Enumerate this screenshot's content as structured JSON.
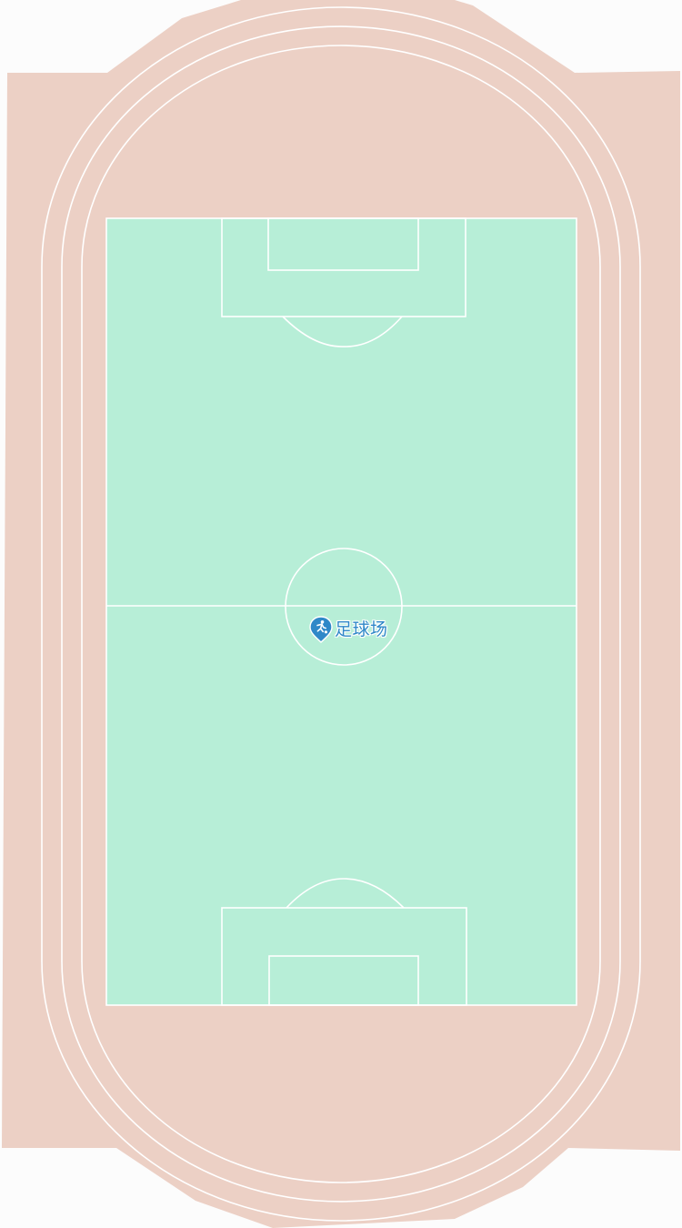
{
  "map": {
    "colors": {
      "background": "#fcfcfc",
      "track": "#ecd0c5",
      "field": "#b7eed7",
      "lines": "#ffffff",
      "poi_pin": "#2f88c8",
      "poi_text": "#2f88c8"
    }
  },
  "poi": {
    "label": "足球场",
    "icon": "soccer-player-pin-icon"
  }
}
